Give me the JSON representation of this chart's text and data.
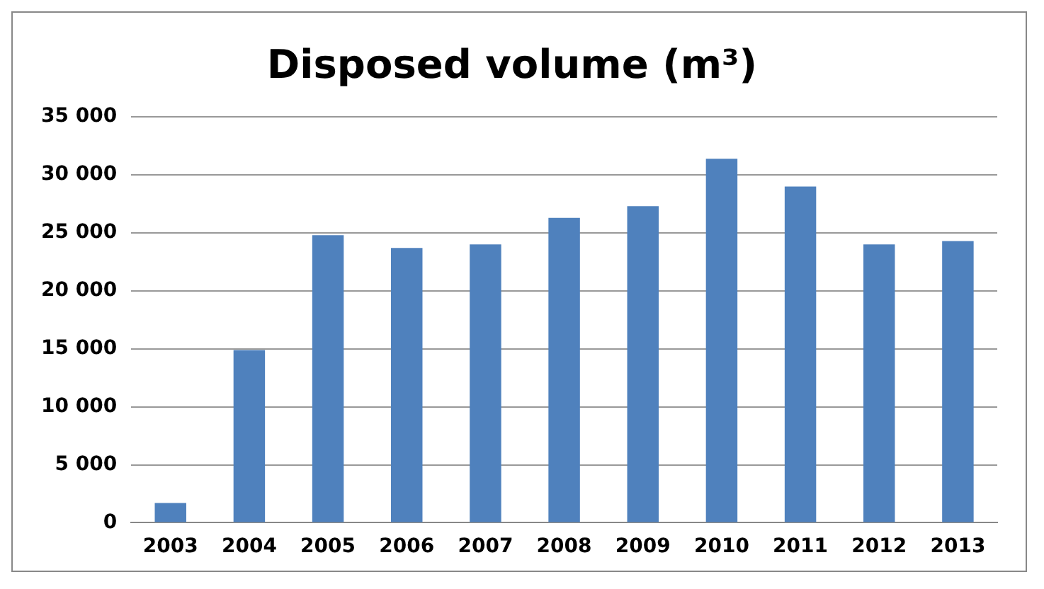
{
  "chart_data": {
    "type": "bar",
    "title": "Disposed volume (m³)",
    "categories": [
      "2003",
      "2004",
      "2005",
      "2006",
      "2007",
      "2008",
      "2009",
      "2010",
      "2011",
      "2012",
      "2013"
    ],
    "values": [
      1700,
      14900,
      24800,
      23700,
      24000,
      26300,
      27300,
      31400,
      29000,
      24000,
      24300
    ],
    "color": "#4f81bd",
    "ylim": [
      0,
      35000
    ],
    "yticks": [
      {
        "value": 0,
        "label": "0"
      },
      {
        "value": 5000,
        "label": "5 000"
      },
      {
        "value": 10000,
        "label": "10 000"
      },
      {
        "value": 15000,
        "label": "15 000"
      },
      {
        "value": 20000,
        "label": "20 000"
      },
      {
        "value": 25000,
        "label": "25 000"
      },
      {
        "value": 30000,
        "label": "30 000"
      },
      {
        "value": 35000,
        "label": "35 000"
      }
    ],
    "grid": "y",
    "legend": false
  }
}
